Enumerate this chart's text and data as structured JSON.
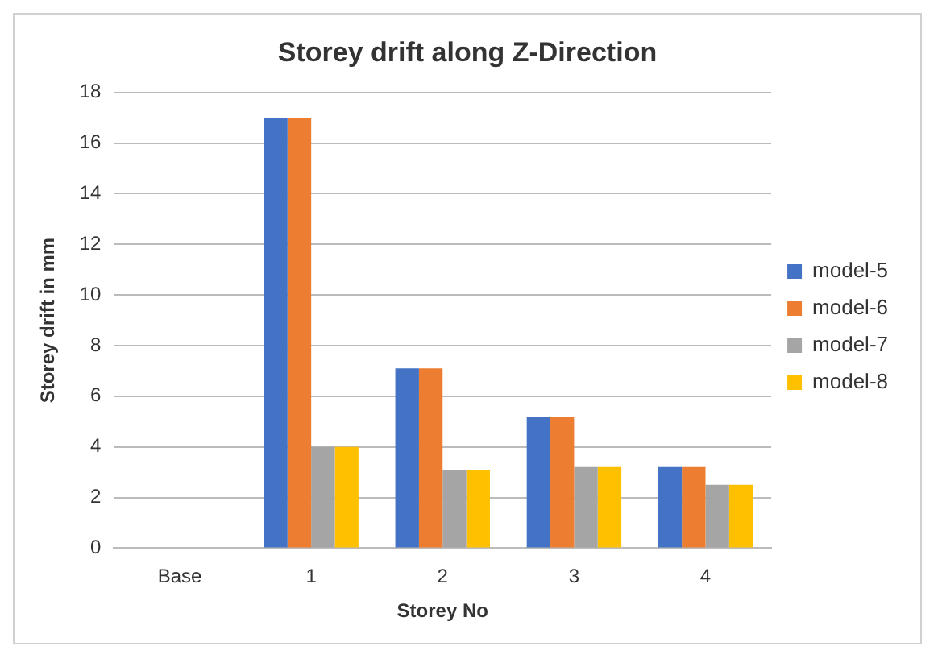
{
  "chart_data": {
    "type": "bar",
    "title": "Storey drift along Z-Direction",
    "xlabel": "Storey No",
    "ylabel": "Storey drift in mm",
    "categories": [
      "Base",
      "1",
      "2",
      "3",
      "4"
    ],
    "series": [
      {
        "name": "model-5",
        "color": "#4472c4",
        "values": [
          0,
          17,
          7.1,
          5.2,
          3.2
        ]
      },
      {
        "name": "model-6",
        "color": "#ed7d31",
        "values": [
          0,
          17,
          7.1,
          5.2,
          3.2
        ]
      },
      {
        "name": "model-7",
        "color": "#a5a5a5",
        "values": [
          0,
          4,
          3.1,
          3.2,
          2.5
        ]
      },
      {
        "name": "model-8",
        "color": "#ffc000",
        "values": [
          0,
          4,
          3.1,
          3.2,
          2.5
        ]
      }
    ],
    "ylim": [
      0,
      18
    ],
    "yticks": [
      0,
      2,
      4,
      6,
      8,
      10,
      12,
      14,
      16,
      18
    ],
    "grid": "y",
    "legend": "right"
  }
}
